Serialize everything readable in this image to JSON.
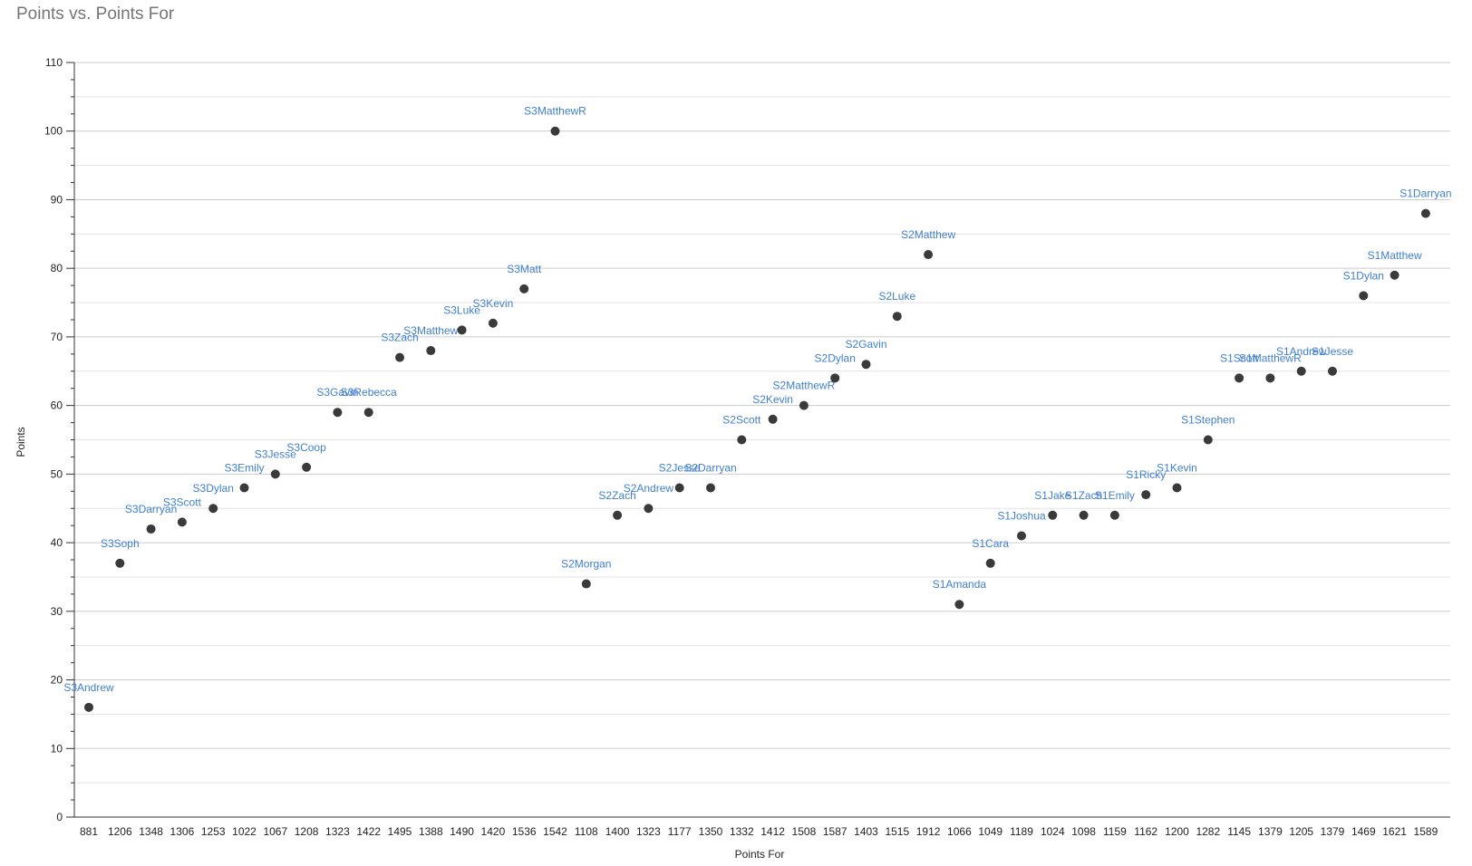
{
  "chart_data": {
    "type": "scatter",
    "title": "Points vs. Points For",
    "xlabel": "Points For",
    "ylabel": "Points",
    "ylim": [
      0,
      110
    ],
    "yticks": [
      0,
      10,
      20,
      30,
      40,
      50,
      60,
      70,
      80,
      90,
      100,
      110
    ],
    "grid": true,
    "colors": {
      "point": "#3a3a3a",
      "label": "#3f7fd0",
      "grid": "#cccccc",
      "axis": "#333333"
    },
    "categories": [
      "881",
      "1206",
      "1348",
      "1306",
      "1253",
      "1022",
      "1067",
      "1208",
      "1323",
      "1422",
      "1495",
      "1388",
      "1490",
      "1420",
      "1536",
      "1542",
      "1108",
      "1400",
      "1323",
      "1177",
      "1350",
      "1332",
      "1412",
      "1508",
      "1587",
      "1403",
      "1515",
      "1912",
      "1066",
      "1049",
      "1189",
      "1024",
      "1098",
      "1159",
      "1162",
      "1200",
      "1282",
      "1145",
      "1379",
      "1205",
      "1379",
      "1469",
      "1621",
      "1589"
    ],
    "points": [
      {
        "label": "S3Andrew",
        "x": "881",
        "y": 16
      },
      {
        "label": "S3Soph",
        "x": "1206",
        "y": 37
      },
      {
        "label": "S3Darryan",
        "x": "1348",
        "y": 42
      },
      {
        "label": "S3Scott",
        "x": "1306",
        "y": 43
      },
      {
        "label": "S3Dylan",
        "x": "1253",
        "y": 45
      },
      {
        "label": "S3Emily",
        "x": "1022",
        "y": 48
      },
      {
        "label": "S3Jesse",
        "x": "1067",
        "y": 50
      },
      {
        "label": "S3Coop",
        "x": "1208",
        "y": 51
      },
      {
        "label": "S3Gavin",
        "x": "1323",
        "y": 59
      },
      {
        "label": "S3Rebecca",
        "x": "1422",
        "y": 59
      },
      {
        "label": "S3Zach",
        "x": "1495",
        "y": 67
      },
      {
        "label": "S3Matthew",
        "x": "1388",
        "y": 68
      },
      {
        "label": "S3Luke",
        "x": "1490",
        "y": 71
      },
      {
        "label": "S3Kevin",
        "x": "1420",
        "y": 72
      },
      {
        "label": "S3Matt",
        "x": "1536",
        "y": 77
      },
      {
        "label": "S3MatthewR",
        "x": "1542",
        "y": 100
      },
      {
        "label": "S2Morgan",
        "x": "1108",
        "y": 34
      },
      {
        "label": "S2Zach",
        "x": "1400",
        "y": 44
      },
      {
        "label": "S2Andrew",
        "x": "1323",
        "y": 45
      },
      {
        "label": "S2Jesse",
        "x": "1177",
        "y": 48
      },
      {
        "label": "S2Darryan",
        "x": "1350",
        "y": 48
      },
      {
        "label": "S2Scott",
        "x": "1332",
        "y": 55
      },
      {
        "label": "S2Kevin",
        "x": "1412",
        "y": 58
      },
      {
        "label": "S2MatthewR",
        "x": "1508",
        "y": 60
      },
      {
        "label": "S2Dylan",
        "x": "1587",
        "y": 64
      },
      {
        "label": "S2Gavin",
        "x": "1403",
        "y": 66
      },
      {
        "label": "S2Luke",
        "x": "1515",
        "y": 73
      },
      {
        "label": "S2Matthew",
        "x": "1912",
        "y": 82
      },
      {
        "label": "S1Amanda",
        "x": "1066",
        "y": 31
      },
      {
        "label": "S1Cara",
        "x": "1049",
        "y": 37
      },
      {
        "label": "S1Joshua",
        "x": "1189",
        "y": 41
      },
      {
        "label": "S1Jake",
        "x": "1024",
        "y": 44
      },
      {
        "label": "S1Zach",
        "x": "1098",
        "y": 44
      },
      {
        "label": "S1Emily",
        "x": "1159",
        "y": 44
      },
      {
        "label": "S1Ricky",
        "x": "1162",
        "y": 47
      },
      {
        "label": "S1Kevin",
        "x": "1200",
        "y": 48
      },
      {
        "label": "S1Stephen",
        "x": "1282",
        "y": 55
      },
      {
        "label": "S1Scott",
        "x": "1145",
        "y": 64
      },
      {
        "label": "S1MatthewR",
        "x": "1379",
        "y": 64
      },
      {
        "label": "S1Andrew",
        "x": "1205",
        "y": 65
      },
      {
        "label": "S1Jesse",
        "x": "1379",
        "y": 65
      },
      {
        "label": "S1Dylan",
        "x": "1469",
        "y": 76
      },
      {
        "label": "S1Matthew",
        "x": "1621",
        "y": 79
      },
      {
        "label": "S1Darryan",
        "x": "1589",
        "y": 88
      }
    ]
  }
}
